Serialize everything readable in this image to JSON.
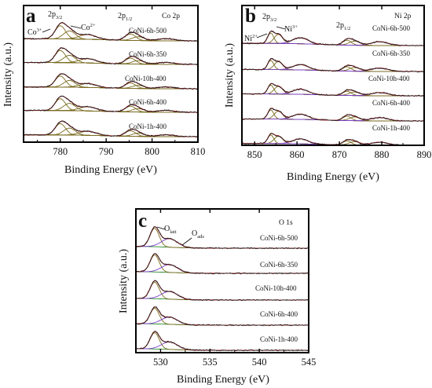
{
  "figure": {
    "panels": [
      {
        "letter": "a",
        "element": "Co 2p",
        "xlabel": "Binding Energy (eV)",
        "ylabel": "Intensity (a.u.)",
        "xticks": [
          "780",
          "790",
          "800",
          "810"
        ],
        "peak_labels": [
          {
            "main": "Co",
            "sup": "3+"
          },
          {
            "main": "2p",
            "sub": "3/2"
          },
          {
            "main": "Co",
            "sup": "2+"
          },
          {
            "main": "2p",
            "sub": "1/2"
          }
        ],
        "samples": [
          "CoNi-6h-500",
          "CoNi-6h-350",
          "CoNi-10h-400",
          "CoNi-6h-400",
          "CoNi-1h-400"
        ]
      },
      {
        "letter": "b",
        "element": "Ni 2p",
        "xlabel": "Binding Energy (eV)",
        "ylabel": "Intensity (a.u.)",
        "xticks": [
          "850",
          "860",
          "870",
          "880",
          "890"
        ],
        "peak_labels": [
          {
            "main": "2p",
            "sub": "3/2"
          },
          {
            "main": "Ni",
            "sup": "2+"
          },
          {
            "main": "Ni",
            "sup": "3+"
          },
          {
            "main": "2p",
            "sub": "1/2"
          }
        ],
        "samples": [
          "CoNi-6h-500",
          "CoNi-6h-350",
          "CoNi-10h-400",
          "CoNi-6h-400",
          "CoNi-1h-400"
        ]
      },
      {
        "letter": "c",
        "element": "O 1s",
        "xlabel": "Binding Energy (eV)",
        "ylabel": "Intensity (a.u.)",
        "xticks": [
          "530",
          "535",
          "540",
          "545"
        ],
        "peak_labels": [
          {
            "main": "O",
            "sub": "latt"
          },
          {
            "main": "O",
            "sub": "ads"
          }
        ],
        "samples": [
          "CoNi-6h-500",
          "CoNi-6h-350",
          "CoNi-10h-400",
          "CoNi-6h-400",
          "CoNi-1h-400"
        ]
      }
    ]
  },
  "chart_data": [
    {
      "type": "line",
      "panel": "a",
      "title": "Co 2p",
      "xlabel": "Binding Energy (eV)",
      "ylabel": "Intensity (a.u.)",
      "xlim": [
        772,
        810
      ],
      "xticks": [
        780,
        790,
        800,
        810
      ],
      "series": [
        {
          "name": "CoNi-6h-500"
        },
        {
          "name": "CoNi-6h-350"
        },
        {
          "name": "CoNi-10h-400"
        },
        {
          "name": "CoNi-6h-400"
        },
        {
          "name": "CoNi-1h-400"
        }
      ],
      "fitted_peaks_eV": [
        780.0,
        782.0,
        786.0,
        795.3,
        797.0,
        803.0
      ],
      "colors": {
        "data": "#1a1a1a",
        "fit_component": "#7a6a1e",
        "envelope": "#b0282a",
        "background": "#2a8a2a"
      }
    },
    {
      "type": "line",
      "panel": "b",
      "title": "Ni 2p",
      "xlabel": "Binding Energy (eV)",
      "ylabel": "Intensity (a.u.)",
      "xlim": [
        847,
        890
      ],
      "xticks": [
        850,
        860,
        870,
        880,
        890
      ],
      "series": [
        {
          "name": "CoNi-6h-500"
        },
        {
          "name": "CoNi-6h-350"
        },
        {
          "name": "CoNi-10h-400"
        },
        {
          "name": "CoNi-6h-400"
        },
        {
          "name": "CoNi-1h-400"
        }
      ],
      "fitted_peaks_eV": [
        853.8,
        855.6,
        860.8,
        871.8,
        873.6,
        879.5
      ],
      "colors": {
        "data": "#1a1a1a",
        "fit_component": "#7a6a1e",
        "envelope": "#b0282a",
        "background": "#2a8a2a",
        "satellite": "#7a3cc8"
      }
    },
    {
      "type": "line",
      "panel": "c",
      "title": "O 1s",
      "xlabel": "Binding Energy (eV)",
      "ylabel": "Intensity (a.u.)",
      "xlim": [
        527.5,
        545
      ],
      "xticks": [
        530,
        535,
        540,
        545
      ],
      "series": [
        {
          "name": "CoNi-6h-500"
        },
        {
          "name": "CoNi-6h-350"
        },
        {
          "name": "CoNi-10h-400"
        },
        {
          "name": "CoNi-6h-400"
        },
        {
          "name": "CoNi-1h-400"
        }
      ],
      "fitted_peaks_eV": [
        529.4,
        530.9
      ],
      "colors": {
        "data": "#1a1a1a",
        "fit_component": "#7a6a1e",
        "envelope": "#b0282a",
        "background": "#2a8a2a",
        "satellite": "#7a3cc8"
      }
    }
  ]
}
